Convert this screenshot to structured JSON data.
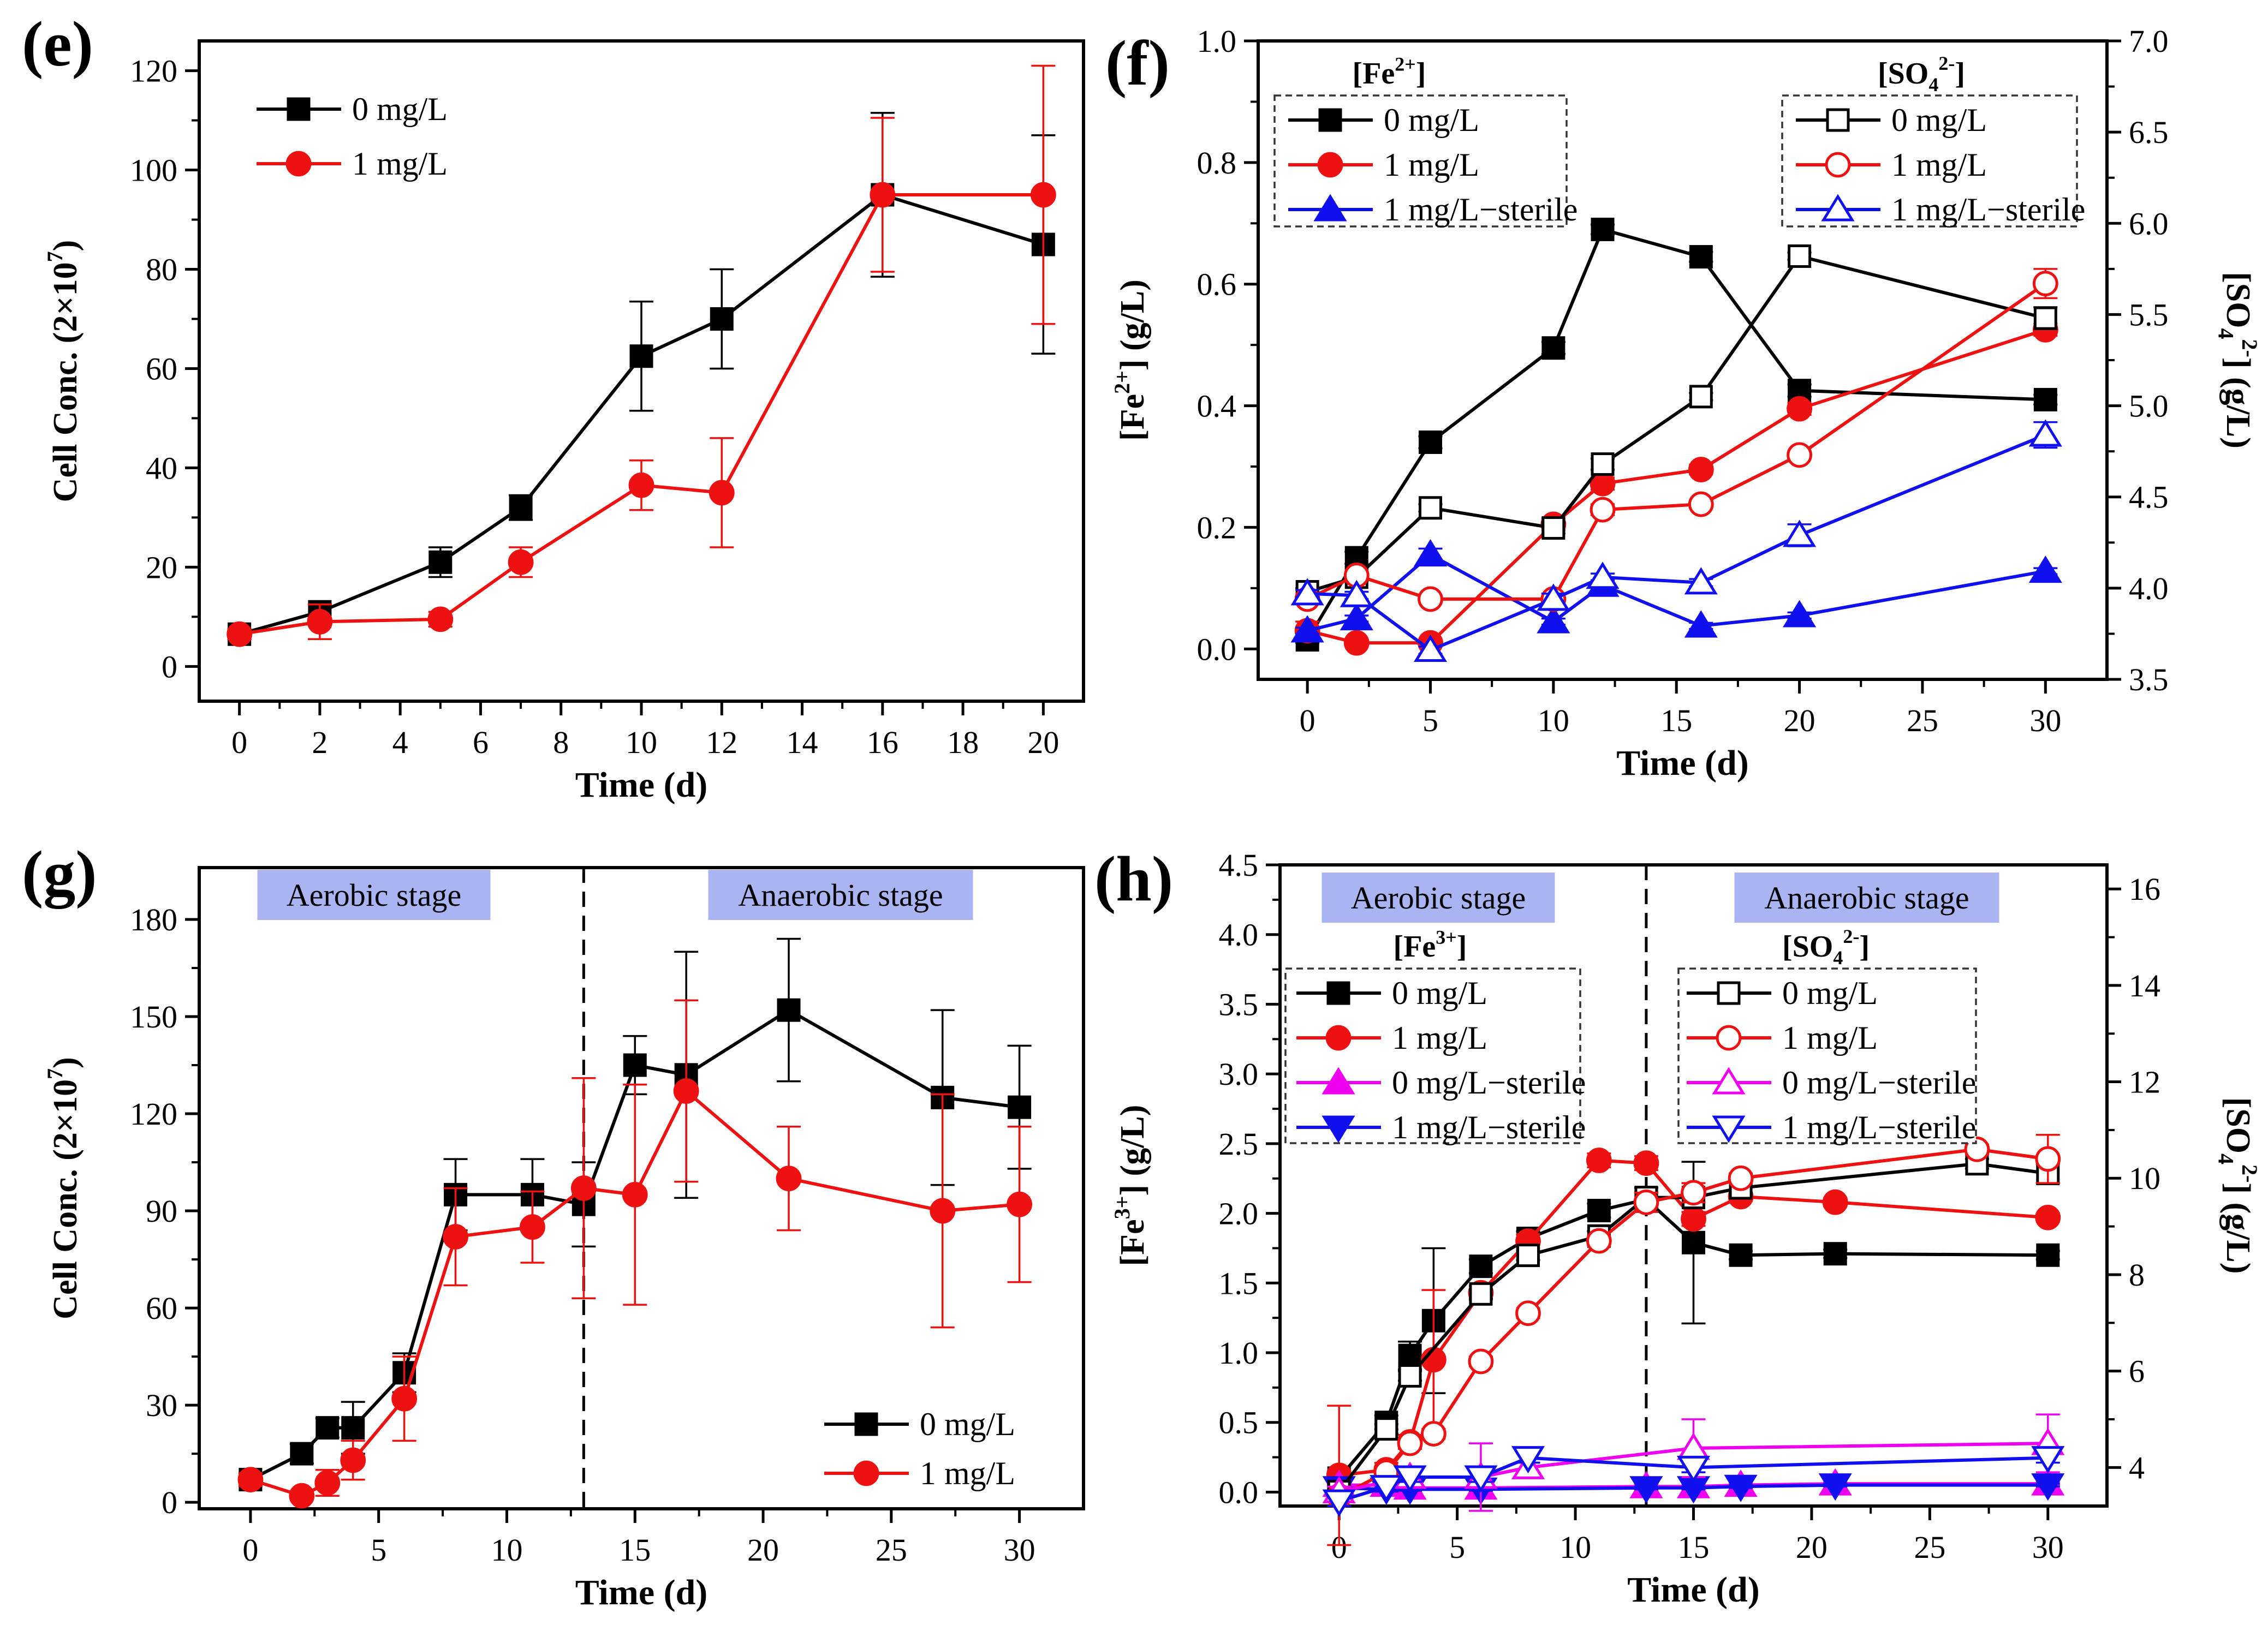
{
  "colors": {
    "black": "#000000",
    "red": "#ee1111",
    "blue": "#1010ee",
    "magenta": "#ee00ee",
    "stage_box": "#aab4f2"
  },
  "chart_data": [
    {
      "panel": "(e)",
      "type": "line",
      "xlabel": "Time (d)",
      "ylabel": "Cell Conc. (2×10⁷)",
      "xlim": [
        -1,
        21
      ],
      "ylim": [
        -7,
        126
      ],
      "xticks": [
        0,
        2,
        4,
        6,
        8,
        10,
        12,
        14,
        16,
        18,
        20
      ],
      "yticks": [
        0,
        20,
        40,
        60,
        80,
        100,
        120
      ],
      "legend": [
        "0 mg/L",
        "1 mg/L"
      ],
      "legend_position": "top-left",
      "series": [
        {
          "name": "0 mg/L",
          "color": "#000000",
          "marker": "square",
          "x": [
            0,
            2,
            5,
            7,
            10,
            12,
            16,
            20
          ],
          "y": [
            6.5,
            11,
            21,
            32,
            62.5,
            70,
            95,
            85
          ],
          "err": [
            1,
            1.5,
            3,
            2.5,
            11,
            10,
            16.5,
            22
          ]
        },
        {
          "name": "1 mg/L",
          "color": "#ee1111",
          "marker": "circle",
          "x": [
            0,
            2,
            5,
            7,
            10,
            12,
            16,
            20
          ],
          "y": [
            6.5,
            9,
            9.5,
            21,
            36.5,
            35,
            95,
            95
          ],
          "err": [
            1,
            3.5,
            1.5,
            3,
            5,
            11,
            15.5,
            26
          ]
        }
      ]
    },
    {
      "panel": "(f)",
      "type": "line",
      "xlabel": "Time (d)",
      "ylabel": "[Fe2+] (g/L)",
      "ylabel_right": "[SO42-] (g/L)",
      "xlim": [
        -2,
        32.5
      ],
      "ylim": [
        -0.05,
        1.0
      ],
      "ylim_right": [
        3.5,
        7.0
      ],
      "xticks": [
        0,
        5,
        10,
        15,
        20,
        25,
        30
      ],
      "yticks": [
        0.0,
        0.2,
        0.4,
        0.6,
        0.8,
        1.0
      ],
      "yticks_right": [
        3.5,
        4.0,
        4.5,
        5.0,
        5.5,
        6.0,
        6.5,
        7.0
      ],
      "legend_left_title": "[Fe2+]",
      "legend_right_title": "[SO42-]",
      "legend": [
        "0 mg/L",
        "1 mg/L",
        "1 mg/L−sterile"
      ],
      "series_left": [
        {
          "name": "0 mg/L",
          "color": "#000000",
          "marker": "square",
          "x": [
            0,
            2,
            5,
            10,
            12,
            16,
            20,
            30
          ],
          "y": [
            0.015,
            0.15,
            0.34,
            0.495,
            0.69,
            0.645,
            0.425,
            0.41
          ],
          "err": [
            0.005,
            0.01,
            0.01,
            0.01,
            0.008,
            0.008,
            0.01,
            0.008
          ]
        },
        {
          "name": "1 mg/L",
          "color": "#ee1111",
          "marker": "circle",
          "x": [
            0,
            2,
            5,
            10,
            12,
            16,
            20,
            30
          ],
          "y": [
            0.03,
            0.01,
            0.01,
            0.205,
            0.272,
            0.295,
            0.395,
            0.525
          ],
          "err": [
            0.015,
            0.005,
            0.005,
            0.01,
            0.01,
            0.008,
            0.01,
            0.01
          ]
        },
        {
          "name": "1 mg/L−sterile",
          "color": "#1010ee",
          "marker": "triangle-up",
          "x": [
            0,
            2,
            5,
            10,
            12,
            16,
            20,
            30
          ],
          "y": [
            0.03,
            0.05,
            0.155,
            0.045,
            0.105,
            0.038,
            0.055,
            0.128
          ],
          "err": [
            0.005,
            0.005,
            0.01,
            0.005,
            0.008,
            0.005,
            0.005,
            0.005
          ]
        }
      ],
      "series_right": [
        {
          "name": "0 mg/L",
          "color": "#000000",
          "marker": "square-open",
          "x": [
            0,
            2,
            5,
            10,
            12,
            16,
            20,
            30
          ],
          "y": [
            3.98,
            4.06,
            4.44,
            4.33,
            4.68,
            5.05,
            5.82,
            5.48
          ],
          "err": [
            0.02,
            0.02,
            0.02,
            0.03,
            0.03,
            0.02,
            0.02,
            0.06
          ]
        },
        {
          "name": "1 mg/L",
          "color": "#ee1111",
          "marker": "circle-open",
          "x": [
            0,
            2,
            5,
            10,
            12,
            16,
            20,
            30
          ],
          "y": [
            3.94,
            4.07,
            3.94,
            3.94,
            4.43,
            4.46,
            4.73,
            5.67
          ],
          "err": [
            0.02,
            0.02,
            0.02,
            0.03,
            0.03,
            0.02,
            0.02,
            0.08
          ]
        },
        {
          "name": "1 mg/L−sterile",
          "color": "#1010ee",
          "marker": "triangle-open",
          "x": [
            0,
            2,
            5,
            10,
            12,
            16,
            20,
            30
          ],
          "y": [
            3.97,
            3.96,
            3.66,
            3.94,
            4.06,
            4.03,
            4.29,
            4.84
          ],
          "err": [
            0.02,
            0.02,
            0.02,
            0.03,
            0.02,
            0.02,
            0.06,
            0.07
          ]
        }
      ]
    },
    {
      "panel": "(g)",
      "type": "line",
      "xlabel": "Time (d)",
      "ylabel": "Cell Conc. (2×10⁷)",
      "xlim": [
        -2,
        32.5
      ],
      "ylim": [
        -2,
        196
      ],
      "xticks": [
        0,
        5,
        10,
        15,
        20,
        25,
        30
      ],
      "yticks": [
        0,
        30,
        60,
        90,
        120,
        150,
        180
      ],
      "stage_divider_x": 13,
      "stages": [
        "Aerobic stage",
        "Anaerobic stage"
      ],
      "legend": [
        "0 mg/L",
        "1 mg/L"
      ],
      "legend_position": "bottom-right",
      "series": [
        {
          "name": "0 mg/L",
          "color": "#000000",
          "marker": "square",
          "x": [
            0,
            2,
            3,
            4,
            6,
            8,
            11,
            13,
            15,
            17,
            21,
            27,
            30
          ],
          "y": [
            7,
            15,
            23,
            23,
            40,
            95,
            95,
            92,
            135,
            132,
            152,
            125,
            122
          ],
          "err": [
            2,
            3,
            3,
            8,
            6,
            11,
            11,
            13,
            9,
            38,
            22,
            27,
            19
          ]
        },
        {
          "name": "1 mg/L",
          "color": "#ee1111",
          "marker": "circle",
          "x": [
            0,
            2,
            3,
            4,
            6,
            8,
            11,
            13,
            15,
            17,
            21,
            27,
            30
          ],
          "y": [
            7,
            2,
            6,
            13,
            32,
            82,
            85,
            97,
            95,
            127,
            100,
            90,
            92
          ],
          "err": [
            2,
            1,
            4,
            6,
            13,
            15,
            11,
            34,
            34,
            28,
            16,
            36,
            24
          ]
        }
      ]
    },
    {
      "panel": "(h)",
      "type": "line",
      "xlabel": "Time (d)",
      "ylabel": "[Fe3+] (g/L)",
      "ylabel_right": "[SO42-] (g/L)",
      "xlim": [
        -2.5,
        32.5
      ],
      "ylim": [
        -0.1,
        4.5
      ],
      "ylim_right": [
        3.2,
        16.5
      ],
      "xticks": [
        0,
        5,
        10,
        15,
        20,
        25,
        30
      ],
      "yticks": [
        0.0,
        0.5,
        1.0,
        1.5,
        2.0,
        2.5,
        3.0,
        3.5,
        4.0,
        4.5
      ],
      "yticks_right": [
        4,
        6,
        8,
        10,
        12,
        14,
        16
      ],
      "stage_divider_x": 13,
      "stages": [
        "Aerobic stage",
        "Anaerobic stage"
      ],
      "legend_left_title": "[Fe3+]",
      "legend_right_title": "[SO42-]",
      "legend": [
        "0 mg/L",
        "1 mg/L",
        "0 mg/L−sterile",
        "1 mg/L−sterile"
      ],
      "series_left": [
        {
          "name": "0 mg/L",
          "color": "#000000",
          "marker": "square",
          "x": [
            0,
            2,
            3,
            4,
            6,
            8,
            11,
            13,
            15,
            17,
            21,
            30
          ],
          "y": [
            0.1,
            0.5,
            0.98,
            1.23,
            1.62,
            1.82,
            2.02,
            2.1,
            1.79,
            1.7,
            1.71,
            1.7
          ],
          "err": [
            0.05,
            0.05,
            0.1,
            0.52,
            0.05,
            0.05,
            0.05,
            0.05,
            0.58,
            0.03,
            0.03,
            0.03
          ]
        },
        {
          "name": "1 mg/L",
          "color": "#ee1111",
          "marker": "circle",
          "x": [
            0,
            2,
            3,
            4,
            6,
            8,
            11,
            13,
            15,
            17,
            21,
            30
          ],
          "y": [
            0.12,
            0.16,
            0.36,
            0.95,
            1.43,
            1.8,
            2.38,
            2.36,
            1.96,
            2.12,
            2.08,
            1.97
          ],
          "err": [
            0.5,
            0.05,
            0.05,
            0.5,
            0.05,
            0.05,
            0.05,
            0.05,
            0.05,
            0.03,
            0.03,
            0.03
          ]
        },
        {
          "name": "0 mg/L−sterile",
          "color": "#ee00ee",
          "marker": "triangle-up",
          "x": [
            0,
            2,
            3,
            6,
            13,
            15,
            17,
            21,
            30
          ],
          "y": [
            0.05,
            0.05,
            0.03,
            0.03,
            0.04,
            0.04,
            0.05,
            0.06,
            0.06
          ],
          "err": [
            0.01,
            0.01,
            0.01,
            0.01,
            0.01,
            0.01,
            0.01,
            0.01,
            0.01
          ]
        },
        {
          "name": "1 mg/L−sterile",
          "color": "#1010ee",
          "marker": "triangle-down",
          "x": [
            0,
            2,
            3,
            6,
            13,
            15,
            17,
            21,
            30
          ],
          "y": [
            0.03,
            0.02,
            0.02,
            0.02,
            0.03,
            0.03,
            0.04,
            0.05,
            0.05
          ],
          "err": [
            0.01,
            0.01,
            0.01,
            0.01,
            0.01,
            0.01,
            0.01,
            0.01,
            0.01
          ]
        }
      ],
      "series_right": [
        {
          "name": "0 mg/L",
          "color": "#000000",
          "marker": "square-open",
          "x": [
            0,
            2,
            3,
            6,
            8,
            11,
            13,
            15,
            17,
            27,
            30
          ],
          "y": [
            3.5,
            4.8,
            5.9,
            7.6,
            8.4,
            8.8,
            9.6,
            9.6,
            9.8,
            10.3,
            10.1
          ],
          "err": [
            0.1,
            0.1,
            0.1,
            0.1,
            0.1,
            0.1,
            0.2,
            0.1,
            0.1,
            0.1,
            0.2
          ]
        },
        {
          "name": "1 mg/L",
          "color": "#ee1111",
          "marker": "circle-open",
          "x": [
            0,
            2,
            3,
            4,
            6,
            8,
            11,
            13,
            15,
            17,
            27,
            30
          ],
          "y": [
            3.4,
            3.9,
            4.5,
            4.7,
            6.2,
            7.2,
            8.7,
            9.5,
            9.7,
            10.0,
            10.6,
            10.4
          ],
          "err": [
            0.2,
            0.1,
            0.1,
            0.1,
            0.1,
            0.1,
            0.1,
            0.2,
            0.2,
            0.1,
            0.1,
            0.5
          ]
        },
        {
          "name": "0 mg/L−sterile",
          "color": "#ee00ee",
          "marker": "triangle-open",
          "x": [
            0,
            3,
            6,
            8,
            15,
            30
          ],
          "y": [
            3.5,
            3.8,
            3.8,
            4.0,
            4.4,
            4.5
          ],
          "err": [
            0.1,
            0.1,
            0.7,
            0.1,
            0.6,
            0.6
          ]
        },
        {
          "name": "1 mg/L−sterile",
          "color": "#1010ee",
          "marker": "triangle-down-open",
          "x": [
            0,
            2,
            3,
            6,
            8,
            15,
            30
          ],
          "y": [
            3.3,
            3.6,
            3.8,
            3.8,
            4.2,
            4.0,
            4.2
          ],
          "err": [
            0.1,
            0.1,
            0.1,
            0.1,
            0.1,
            0.1,
            0.1
          ]
        }
      ]
    }
  ]
}
